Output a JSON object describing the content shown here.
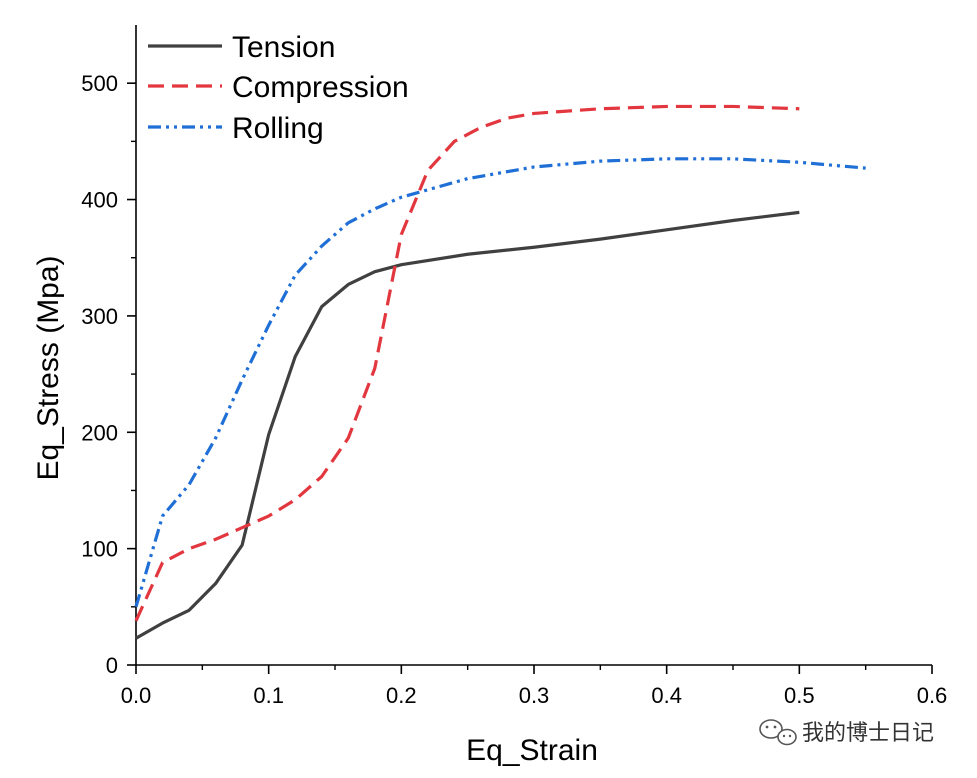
{
  "chart_data": {
    "type": "line",
    "title": "",
    "xlabel": "Eq_Strain",
    "ylabel": "Eq_Stress (Mpa)",
    "xlim": [
      0,
      0.6
    ],
    "ylim": [
      0,
      550
    ],
    "x_ticks": [
      "0.0",
      "0.1",
      "0.2",
      "0.3",
      "0.4",
      "0.5",
      "0.6"
    ],
    "x_tick_values": [
      0,
      0.1,
      0.2,
      0.3,
      0.4,
      0.5,
      0.6
    ],
    "y_ticks": [
      "0",
      "100",
      "200",
      "300",
      "400",
      "500"
    ],
    "y_tick_values": [
      0,
      100,
      200,
      300,
      400,
      500
    ],
    "grid": false,
    "legend_position": "top-left",
    "series": [
      {
        "name": "Tension",
        "color": "#404040",
        "style": "solid",
        "points": [
          [
            0,
            23
          ],
          [
            0.02,
            36
          ],
          [
            0.04,
            47
          ],
          [
            0.06,
            70
          ],
          [
            0.08,
            103
          ],
          [
            0.1,
            198
          ],
          [
            0.12,
            265
          ],
          [
            0.14,
            308
          ],
          [
            0.16,
            327
          ],
          [
            0.18,
            338
          ],
          [
            0.2,
            344
          ],
          [
            0.25,
            353
          ],
          [
            0.3,
            359
          ],
          [
            0.35,
            366
          ],
          [
            0.4,
            374
          ],
          [
            0.45,
            382
          ],
          [
            0.5,
            389
          ]
        ]
      },
      {
        "name": "Compression",
        "color": "#e3373f",
        "style": "dashed",
        "points": [
          [
            0,
            38
          ],
          [
            0.02,
            88
          ],
          [
            0.04,
            100
          ],
          [
            0.06,
            108
          ],
          [
            0.08,
            118
          ],
          [
            0.1,
            128
          ],
          [
            0.12,
            142
          ],
          [
            0.14,
            162
          ],
          [
            0.16,
            195
          ],
          [
            0.18,
            255
          ],
          [
            0.2,
            370
          ],
          [
            0.22,
            425
          ],
          [
            0.24,
            450
          ],
          [
            0.26,
            462
          ],
          [
            0.28,
            470
          ],
          [
            0.3,
            474
          ],
          [
            0.35,
            478
          ],
          [
            0.4,
            480
          ],
          [
            0.45,
            480
          ],
          [
            0.5,
            478
          ]
        ]
      },
      {
        "name": "Rolling",
        "color": "#1f6fd6",
        "style": "dash-dot-dot",
        "points": [
          [
            0,
            50
          ],
          [
            0.02,
            128
          ],
          [
            0.04,
            155
          ],
          [
            0.06,
            195
          ],
          [
            0.08,
            245
          ],
          [
            0.1,
            292
          ],
          [
            0.12,
            335
          ],
          [
            0.14,
            360
          ],
          [
            0.16,
            380
          ],
          [
            0.18,
            392
          ],
          [
            0.2,
            402
          ],
          [
            0.25,
            418
          ],
          [
            0.3,
            428
          ],
          [
            0.35,
            433
          ],
          [
            0.4,
            435
          ],
          [
            0.45,
            435
          ],
          [
            0.5,
            432
          ],
          [
            0.55,
            427
          ]
        ]
      }
    ]
  },
  "watermark": {
    "text": "我的博士日记",
    "icon": "wechat-icon"
  }
}
